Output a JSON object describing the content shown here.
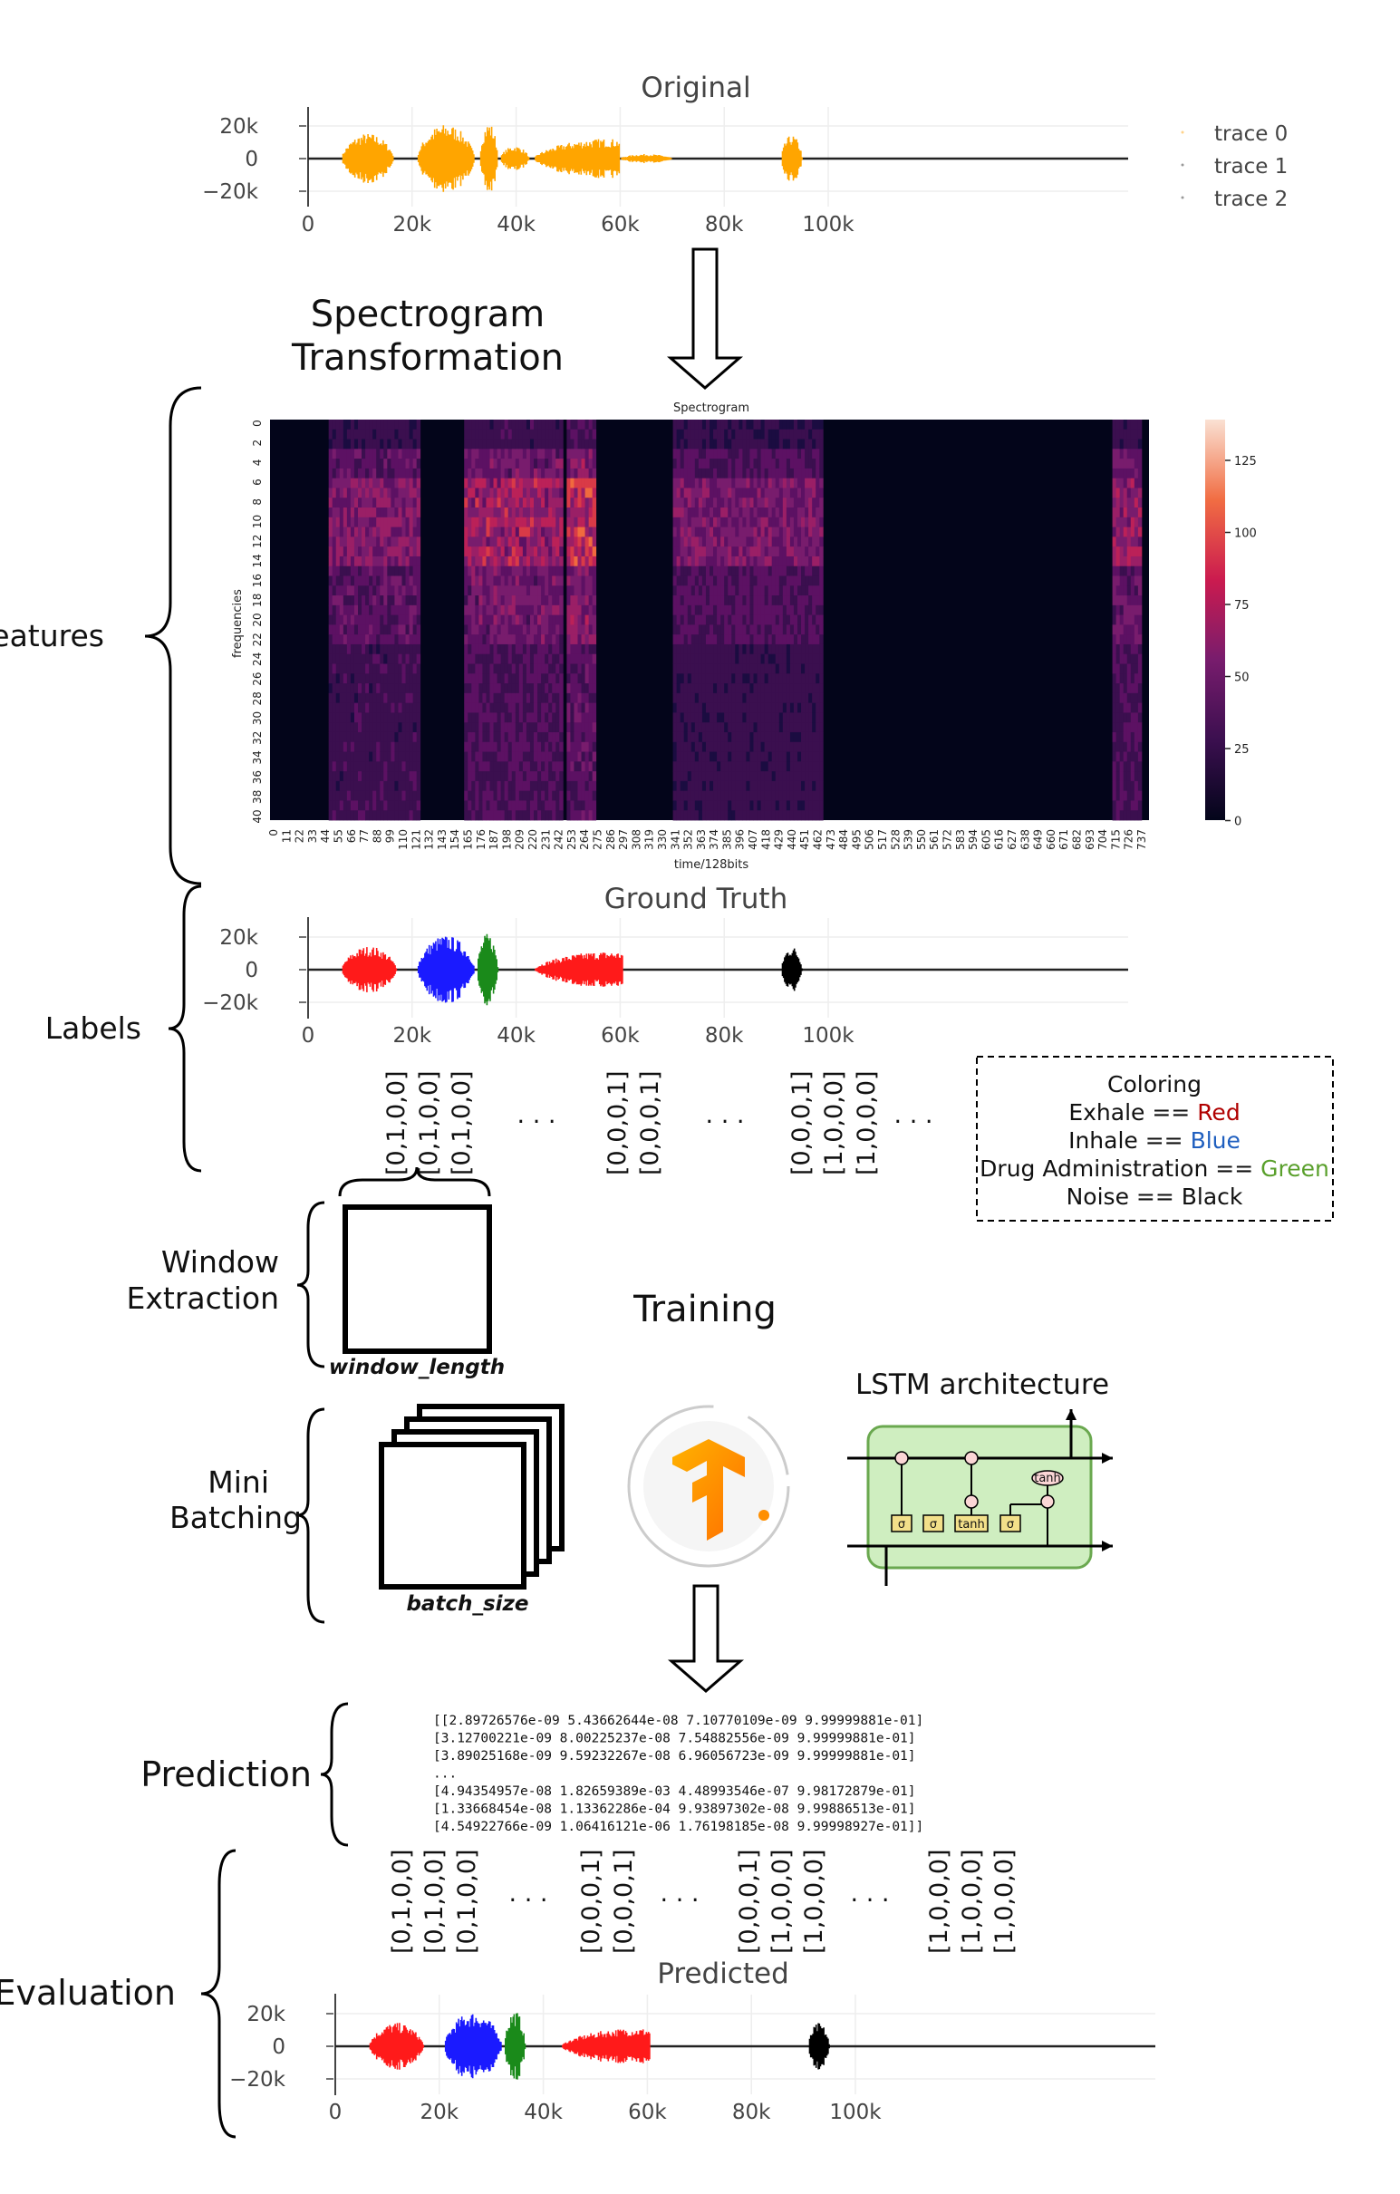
{
  "original_plot": {
    "title": "Original",
    "yticks": [
      "20k",
      "0",
      "−20k"
    ],
    "xticks": [
      "0",
      "20k",
      "40k",
      "60k",
      "80k",
      "100k"
    ],
    "legend": [
      "trace 0",
      "trace 1",
      "trace 2"
    ],
    "color": "#ffa500"
  },
  "spectrogram_step": {
    "line1": "Spectrogram",
    "line2": "Transformation"
  },
  "spectrogram": {
    "title": "Spectrogram",
    "ylabel": "frequencies",
    "xlabel": "time/128bits",
    "yticks": [
      "0",
      "2",
      "4",
      "6",
      "8",
      "10",
      "12",
      "14",
      "16",
      "18",
      "20",
      "22",
      "24",
      "26",
      "28",
      "30",
      "32",
      "34",
      "36",
      "38",
      "40"
    ],
    "xticks": [
      "0",
      "11",
      "22",
      "33",
      "44",
      "55",
      "66",
      "77",
      "88",
      "99",
      "110",
      "121",
      "132",
      "143",
      "154",
      "165",
      "176",
      "187",
      "198",
      "209",
      "220",
      "231",
      "242",
      "253",
      "264",
      "275",
      "286",
      "297",
      "308",
      "319",
      "330",
      "341",
      "352",
      "363",
      "374",
      "385",
      "396",
      "407",
      "418",
      "429",
      "440",
      "451",
      "462",
      "473",
      "484",
      "495",
      "506",
      "517",
      "528",
      "539",
      "550",
      "561",
      "572",
      "583",
      "594",
      "605",
      "616",
      "627",
      "638",
      "649",
      "660",
      "671",
      "682",
      "693",
      "704",
      "715",
      "726",
      "737"
    ],
    "colorbar_ticks": [
      "125",
      "100",
      "75",
      "50",
      "25",
      "0"
    ]
  },
  "side_labels": {
    "features": "Features",
    "labels": "Labels",
    "window_1": "Window",
    "window_2": "Extraction",
    "mini_1": "Mini",
    "mini_2": "Batching",
    "prediction": "Prediction",
    "evaluation": "Evaluation"
  },
  "ground_truth_plot": {
    "title": "Ground Truth",
    "yticks": [
      "20k",
      "0",
      "−20k"
    ],
    "xticks": [
      "0",
      "20k",
      "40k",
      "60k",
      "80k",
      "100k"
    ]
  },
  "predicted_plot": {
    "title": "Predicted",
    "yticks": [
      "20k",
      "0",
      "−20k"
    ],
    "xticks": [
      "0",
      "20k",
      "40k",
      "60k",
      "80k",
      "100k"
    ]
  },
  "label_vectors": {
    "group1": [
      "[0,1,0,0]",
      "[0,1,0,0]",
      "[0,1,0,0]"
    ],
    "group2": [
      "[0,0,0,1]",
      "[0,0,0,1]"
    ],
    "group3": [
      "[0,0,0,1]",
      "[1,0,0,0]",
      "[1,0,0,0]"
    ],
    "ellipsis": ". . ."
  },
  "eval_vectors": {
    "group1": [
      "[0,1,0,0]",
      "[0,1,0,0]",
      "[0,1,0,0]"
    ],
    "group2": [
      "[0,0,0,1]",
      "[0,0,0,1]"
    ],
    "group3": [
      "[0,0,0,1]",
      "[1,0,0,0]",
      "[1,0,0,0]"
    ],
    "group4": [
      "[1,0,0,0]",
      "[1,0,0,0]",
      "[1,0,0,0]"
    ],
    "ellipsis": ". . ."
  },
  "coloring_legend": {
    "title": "Coloring",
    "exhale_prefix": "Exhale == ",
    "exhale_color": "Red",
    "inhale_prefix": "Inhale == ",
    "inhale_color": "Blue",
    "drug_prefix": "Drug Administration == ",
    "drug_color": "Green",
    "noise_prefix": "Noise == ",
    "noise_color": "Black"
  },
  "colors": {
    "red": "#ff1a1a",
    "blue": "#1a1aff",
    "green": "#1a8a1a",
    "black": "#000000",
    "legend_red": "#b00000",
    "legend_blue": "#1f5fbf",
    "legend_green": "#5aa02c"
  },
  "training": {
    "title": "Training",
    "window_length": "window_length",
    "batch_size": "batch_size",
    "lstm_title": "LSTM architecture",
    "gates": [
      "σ",
      "σ",
      "tanh",
      "σ"
    ],
    "tanh_out": "tanh"
  },
  "prediction_matrix": [
    "[[2.89726576e-09 5.43662644e-08 7.10770109e-09 9.99999881e-01]",
    " [3.12700221e-09 8.00225237e-08 7.54882556e-09 9.99999881e-01]",
    " [3.89025168e-09 9.59232267e-08 6.96056723e-09 9.99999881e-01]",
    " ...",
    " [4.94354957e-08 1.82659389e-03 4.48993546e-07 9.98172879e-01]",
    " [1.33668454e-08 1.13362286e-04 9.93897302e-08 9.99886513e-01]",
    " [4.54922766e-09 1.06416121e-06 1.76198185e-08 9.99998927e-01]]"
  ],
  "icons": {
    "tensorflow": "tensorflow-logo-icon",
    "arrow": "down-arrow-icon"
  }
}
